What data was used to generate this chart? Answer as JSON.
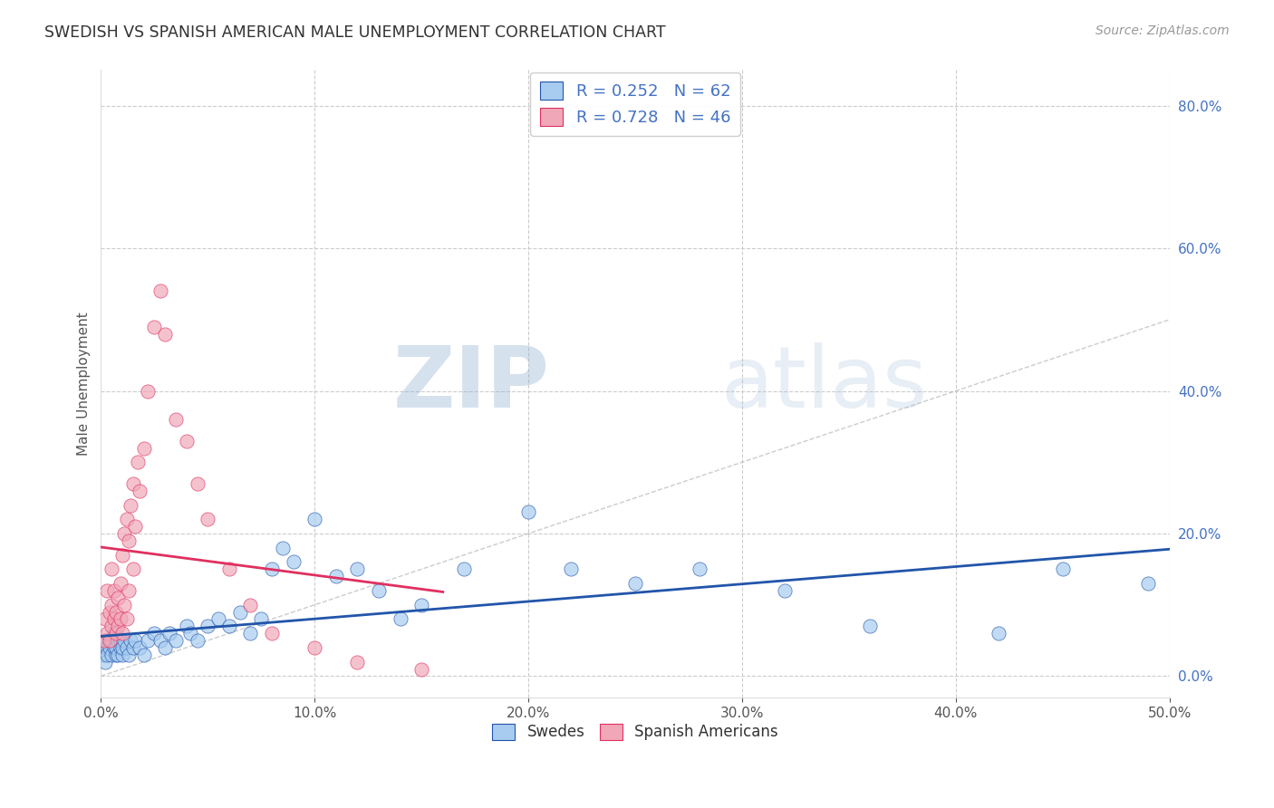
{
  "title": "SWEDISH VS SPANISH AMERICAN MALE UNEMPLOYMENT CORRELATION CHART",
  "source": "Source: ZipAtlas.com",
  "ylabel": "Male Unemployment",
  "legend_entry1": "R = 0.252   N = 62",
  "legend_entry2": "R = 0.728   N = 46",
  "legend_label1": "Swedes",
  "legend_label2": "Spanish Americans",
  "watermark_zip": "ZIP",
  "watermark_atlas": "atlas",
  "blue_color": "#A8CCF0",
  "pink_color": "#F0A8B8",
  "blue_line_color": "#2255AA",
  "pink_line_color": "#E03060",
  "text_blue": "#4472C4",
  "title_color": "#333333",
  "swedes_x": [
    0.001,
    0.001,
    0.002,
    0.002,
    0.003,
    0.003,
    0.004,
    0.004,
    0.005,
    0.005,
    0.006,
    0.006,
    0.007,
    0.007,
    0.008,
    0.008,
    0.009,
    0.009,
    0.01,
    0.01,
    0.011,
    0.012,
    0.013,
    0.014,
    0.015,
    0.016,
    0.018,
    0.02,
    0.022,
    0.025,
    0.028,
    0.03,
    0.032,
    0.035,
    0.04,
    0.042,
    0.045,
    0.05,
    0.055,
    0.06,
    0.065,
    0.07,
    0.075,
    0.08,
    0.085,
    0.09,
    0.1,
    0.11,
    0.12,
    0.13,
    0.14,
    0.15,
    0.17,
    0.2,
    0.22,
    0.25,
    0.28,
    0.32,
    0.36,
    0.42,
    0.45,
    0.49
  ],
  "swedes_y": [
    0.04,
    0.03,
    0.05,
    0.02,
    0.04,
    0.03,
    0.05,
    0.04,
    0.03,
    0.05,
    0.04,
    0.06,
    0.03,
    0.04,
    0.05,
    0.03,
    0.04,
    0.05,
    0.03,
    0.04,
    0.05,
    0.04,
    0.03,
    0.05,
    0.04,
    0.05,
    0.04,
    0.03,
    0.05,
    0.06,
    0.05,
    0.04,
    0.06,
    0.05,
    0.07,
    0.06,
    0.05,
    0.07,
    0.08,
    0.07,
    0.09,
    0.06,
    0.08,
    0.15,
    0.18,
    0.16,
    0.22,
    0.14,
    0.15,
    0.12,
    0.08,
    0.1,
    0.15,
    0.23,
    0.15,
    0.13,
    0.15,
    0.12,
    0.07,
    0.06,
    0.15,
    0.13
  ],
  "spanish_x": [
    0.001,
    0.002,
    0.003,
    0.003,
    0.004,
    0.004,
    0.005,
    0.005,
    0.005,
    0.006,
    0.006,
    0.007,
    0.007,
    0.008,
    0.008,
    0.009,
    0.009,
    0.01,
    0.01,
    0.011,
    0.011,
    0.012,
    0.012,
    0.013,
    0.013,
    0.014,
    0.015,
    0.015,
    0.016,
    0.017,
    0.018,
    0.02,
    0.022,
    0.025,
    0.028,
    0.03,
    0.035,
    0.04,
    0.045,
    0.05,
    0.06,
    0.07,
    0.08,
    0.1,
    0.12,
    0.15
  ],
  "spanish_y": [
    0.05,
    0.08,
    0.06,
    0.12,
    0.05,
    0.09,
    0.07,
    0.1,
    0.15,
    0.08,
    0.12,
    0.06,
    0.09,
    0.07,
    0.11,
    0.08,
    0.13,
    0.06,
    0.17,
    0.1,
    0.2,
    0.08,
    0.22,
    0.12,
    0.19,
    0.24,
    0.15,
    0.27,
    0.21,
    0.3,
    0.26,
    0.32,
    0.4,
    0.49,
    0.54,
    0.48,
    0.36,
    0.33,
    0.27,
    0.22,
    0.15,
    0.1,
    0.06,
    0.04,
    0.02,
    0.01
  ],
  "xlim": [
    0.0,
    0.5
  ],
  "ylim": [
    -0.03,
    0.85
  ],
  "xticks": [
    0.0,
    0.1,
    0.2,
    0.3,
    0.4,
    0.5
  ],
  "yticks": [
    0.0,
    0.2,
    0.4,
    0.6,
    0.8
  ]
}
